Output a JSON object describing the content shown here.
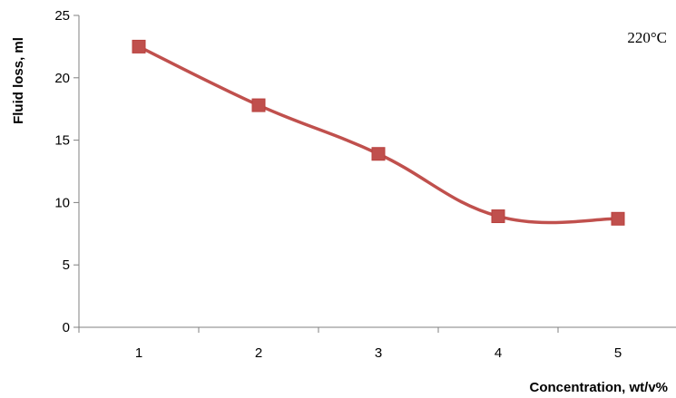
{
  "chart_data": {
    "type": "line",
    "title": "",
    "xlabel": "Concentration, wt/v%",
    "ylabel": "Fluid loss, ml",
    "annotation": "220°C",
    "x": [
      1,
      2,
      3,
      4,
      5
    ],
    "x_tick_labels": [
      "1",
      "2",
      "3",
      "4",
      "5"
    ],
    "y_tick_labels": [
      "0",
      "5",
      "10",
      "15",
      "20",
      "25"
    ],
    "ylim": [
      0,
      25
    ],
    "series": [
      {
        "values": [
          22.5,
          17.8,
          13.9,
          8.9,
          8.7
        ],
        "color": "#c0504d",
        "marker": "square",
        "smooth": true
      }
    ],
    "grid": false,
    "legend": "none"
  }
}
